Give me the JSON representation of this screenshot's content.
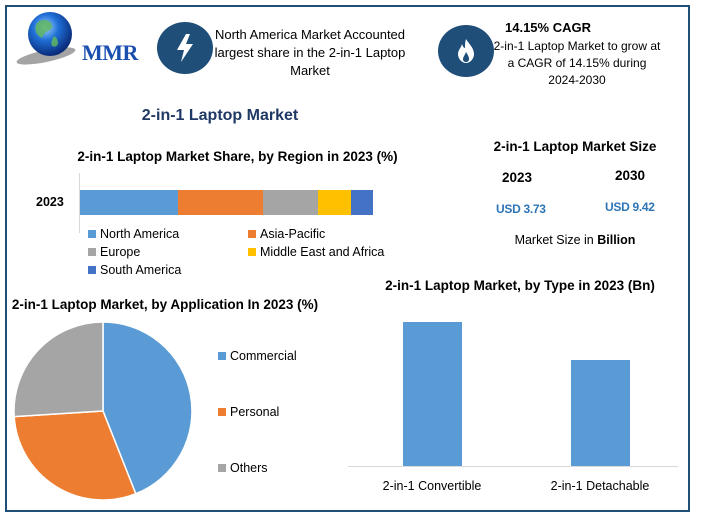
{
  "brand": {
    "logo_text": "MMR"
  },
  "highlights": [
    {
      "icon": "lightning-bolt-icon",
      "text": "North America Market Accounted largest share in the 2-in-1 Laptop Market"
    },
    {
      "icon": "flame-icon",
      "title": "14.15% CAGR",
      "text": "2-in-1 Laptop Market to grow at a CAGR of 14.15% during 2024-2030"
    }
  ],
  "main_title": "2-in-1 Laptop Market",
  "market_size": {
    "title": "2-in-1 Laptop Market Size",
    "years": [
      {
        "year": "2023",
        "value": "USD 3.73"
      },
      {
        "year": "2030",
        "value": "USD 9.42"
      }
    ],
    "note_prefix": "Market Size in ",
    "note_bold": "Billion"
  },
  "colors": {
    "frame": "#1f4e79",
    "north_america": "#5b9bd5",
    "asia_pacific": "#ed7d31",
    "europe": "#a5a5a5",
    "mea": "#ffc000",
    "south_america": "#4472c4",
    "title_navy": "#1f3864",
    "value_blue": "#2e75b6"
  },
  "chart_data": [
    {
      "type": "bar",
      "orientation": "horizontal-stacked",
      "title": "2-in-1 Laptop Market Share, by Region in 2023 (%)",
      "categories": [
        "2023"
      ],
      "series": [
        {
          "name": "North America",
          "values": [
            33.4
          ],
          "color": "#5b9bd5"
        },
        {
          "name": "Asia-Pacific",
          "values": [
            29.0
          ],
          "color": "#ed7d31"
        },
        {
          "name": "Europe",
          "values": [
            18.8
          ],
          "color": "#a5a5a5"
        },
        {
          "name": "Middle East and Africa",
          "values": [
            11.3
          ],
          "color": "#ffc000"
        },
        {
          "name": "South America",
          "values": [
            7.5
          ],
          "color": "#4472c4"
        }
      ],
      "xlabel": "",
      "ylabel": "",
      "legend_position": "bottom",
      "grid": false
    },
    {
      "type": "pie",
      "title": "2-in-1 Laptop Market, by Application In 2023 (%)",
      "categories": [
        "Commercial",
        "Personal",
        "Others"
      ],
      "values": [
        44,
        30,
        26
      ],
      "colors": [
        "#5b9bd5",
        "#ed7d31",
        "#a5a5a5"
      ],
      "legend_position": "right"
    },
    {
      "type": "bar",
      "title": "2-in-1 Laptop Market, by Type in 2023 (Bn)",
      "categories": [
        "2-in-1 Convertible",
        "2-in-1 Detachable"
      ],
      "values": [
        2.15,
        1.58
      ],
      "color": "#5b9bd5",
      "xlabel": "",
      "ylabel": "",
      "grid": false,
      "axis_visible": false
    }
  ]
}
